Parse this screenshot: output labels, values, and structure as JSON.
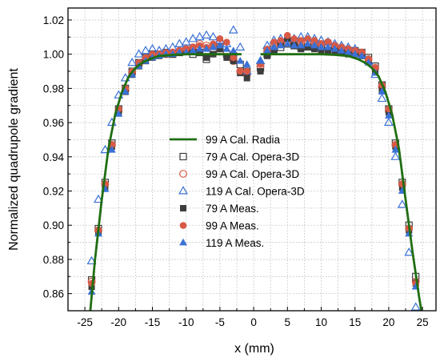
{
  "chart_data": {
    "type": "scatter",
    "xlabel": "x (mm)",
    "ylabel": "Normalized quadrupole gradient",
    "xlim": [
      -27.5,
      27
    ],
    "ylim": [
      0.85,
      1.027
    ],
    "xticks": [
      -25,
      -20,
      -15,
      -10,
      -5,
      0,
      5,
      10,
      15,
      20,
      25
    ],
    "yticks": [
      0.86,
      0.88,
      0.9,
      0.92,
      0.94,
      0.96,
      0.98,
      1.0,
      1.02
    ],
    "ytick_labels": [
      "0.86",
      "0.88",
      "0.90",
      "0.92",
      "0.94",
      "0.96",
      "0.98",
      "1.00",
      "1.02"
    ],
    "grid": true,
    "legend_position": "center",
    "colors": {
      "line": "#1f6e11",
      "gray": "#3d3d3d",
      "red": "#d85a46",
      "blue": "#3a71d6"
    },
    "series": [
      {
        "name": "99 A Cal. Radia",
        "kind": "line",
        "color": "#1f6e11",
        "segments": [
          [
            [
              -24.2,
              0.85
            ],
            [
              -23.5,
              0.88
            ],
            [
              -22.5,
              0.915
            ],
            [
              -21.5,
              0.945
            ],
            [
              -20.5,
              0.965
            ],
            [
              -19.5,
              0.978
            ],
            [
              -18.5,
              0.987
            ],
            [
              -17.5,
              0.992
            ],
            [
              -16.5,
              0.995
            ],
            [
              -15.5,
              0.997
            ],
            [
              -14,
              0.999
            ],
            [
              -12,
              0.9996
            ],
            [
              -10,
              1.0
            ],
            [
              -5,
              1.0
            ],
            [
              -1.8,
              1.0
            ]
          ],
          [
            [
              1.0,
              1.0
            ],
            [
              5,
              1.0
            ],
            [
              10,
              1.0
            ],
            [
              12,
              0.9996
            ],
            [
              14,
              0.999
            ],
            [
              15.5,
              0.997
            ],
            [
              16.5,
              0.995
            ],
            [
              17.5,
              0.992
            ],
            [
              18.5,
              0.987
            ],
            [
              19.5,
              0.978
            ],
            [
              20.5,
              0.965
            ],
            [
              21.5,
              0.945
            ],
            [
              22.5,
              0.915
            ],
            [
              23.5,
              0.885
            ],
            [
              24.5,
              0.858
            ],
            [
              25,
              0.846
            ]
          ]
        ]
      },
      {
        "name": "79 A Cal. Opera-3D",
        "kind": "open-square",
        "color": "#3d3d3d",
        "x": [
          -24,
          -23,
          -22,
          -21,
          -20,
          -19,
          -18,
          -17,
          -16,
          -15,
          -14,
          -13,
          -12,
          -11,
          -10,
          -9,
          -8,
          -7,
          -6,
          -5,
          -4,
          -3,
          -2,
          -1,
          1,
          2,
          3,
          4,
          5,
          6,
          7,
          8,
          9,
          10,
          11,
          12,
          13,
          14,
          15,
          16,
          17,
          18,
          19,
          20,
          21,
          22,
          23,
          24
        ],
        "y": [
          0.868,
          0.898,
          0.925,
          0.948,
          0.968,
          0.98,
          0.99,
          0.995,
          0.998,
          1.0,
          1.0,
          1.001,
          1.0,
          1.001,
          1.002,
          1.0,
          1.001,
          0.997,
          1.002,
          1.004,
          1.0,
          0.999,
          0.994,
          0.99,
          0.992,
          1.0,
          1.003,
          1.004,
          1.006,
          1.005,
          1.004,
          1.006,
          1.004,
          1.005,
          1.004,
          1.004,
          1.002,
          1.001,
          1.002,
          1.001,
          0.998,
          0.993,
          0.982,
          0.968,
          0.948,
          0.925,
          0.9,
          0.87
        ]
      },
      {
        "name": "99 A Cal. Opera-3D",
        "kind": "open-circle",
        "color": "#d85a46",
        "x": [
          -24,
          -23,
          -22,
          -21,
          -20,
          -19,
          -18,
          -17,
          -16,
          -15,
          -14,
          -13,
          -12,
          -11,
          -10,
          -9,
          -8,
          -7,
          -6,
          -5,
          -4,
          -3,
          -2,
          -1,
          1,
          2,
          3,
          4,
          5,
          6,
          7,
          8,
          9,
          10,
          11,
          12,
          13,
          14,
          15,
          16,
          17,
          18,
          19,
          20,
          21,
          22,
          23,
          24
        ],
        "y": [
          0.867,
          0.897,
          0.924,
          0.947,
          0.967,
          0.979,
          0.989,
          0.994,
          0.997,
          0.999,
          1.0,
          1.0,
          1.001,
          1.002,
          1.003,
          1.004,
          1.006,
          1.005,
          1.003,
          1.007,
          1.001,
          0.996,
          0.99,
          0.988,
          0.993,
          1.002,
          1.005,
          1.006,
          1.008,
          1.008,
          1.007,
          1.008,
          1.007,
          1.006,
          1.007,
          1.005,
          1.004,
          1.003,
          1.002,
          1.001,
          0.997,
          0.992,
          0.981,
          0.967,
          0.947,
          0.924,
          0.898,
          0.867
        ]
      },
      {
        "name": "119 A Cal. Opera-3D",
        "kind": "open-triangle",
        "color": "#3a71d6",
        "x": [
          -24,
          -23,
          -22,
          -21,
          -20,
          -19,
          -18,
          -17,
          -16,
          -15,
          -14,
          -13,
          -12,
          -11,
          -10,
          -9,
          -8,
          -7,
          -6,
          -5,
          -4,
          -3,
          -2,
          -1,
          1,
          2,
          3,
          4,
          5,
          6,
          7,
          8,
          9,
          10,
          11,
          12,
          13,
          14,
          15,
          16,
          17,
          18,
          19,
          20,
          21,
          22,
          23,
          24
        ],
        "y": [
          0.879,
          0.915,
          0.944,
          0.96,
          0.976,
          0.986,
          0.995,
          1.0,
          1.002,
          1.003,
          1.002,
          1.003,
          1.004,
          1.006,
          1.007,
          1.009,
          1.01,
          1.011,
          1.01,
          1.008,
          1.006,
          1.014,
          1.004,
          0.99,
          0.996,
          1.005,
          1.008,
          1.009,
          1.01,
          1.009,
          1.01,
          1.01,
          1.009,
          1.008,
          1.007,
          1.006,
          1.005,
          1.004,
          1.003,
          1.0,
          0.996,
          0.988,
          0.974,
          0.96,
          0.94,
          0.912,
          0.884,
          0.852
        ]
      },
      {
        "name": "79 A Meas.",
        "kind": "filled-square",
        "color": "#3d3d3d",
        "x": [
          -24,
          -23,
          -22,
          -21,
          -20,
          -19,
          -18,
          -17,
          -16,
          -15,
          -14,
          -13,
          -12,
          -11,
          -10,
          -9,
          -8,
          -7,
          -6,
          -5,
          -4,
          -3,
          -2,
          -1,
          1,
          2,
          3,
          4,
          5,
          6,
          7,
          8,
          9,
          10,
          11,
          12,
          13,
          14,
          15,
          16,
          17,
          18,
          19,
          20,
          21,
          22,
          23,
          24
        ],
        "y": [
          0.864,
          0.896,
          0.922,
          0.946,
          0.966,
          0.978,
          0.988,
          0.993,
          0.996,
          0.998,
          0.999,
          1.0,
          1.0,
          1.001,
          1.002,
          1.003,
          1.001,
          0.998,
          1.0,
          1.003,
          0.998,
          0.996,
          0.989,
          0.986,
          0.99,
          0.999,
          1.002,
          1.006,
          1.009,
          1.005,
          1.003,
          1.004,
          1.003,
          1.002,
          1.002,
          1.002,
          1.001,
          1.0,
          1.0,
          0.999,
          0.996,
          0.99,
          0.979,
          0.966,
          0.946,
          0.922,
          0.897,
          0.866
        ]
      },
      {
        "name": "99 A Meas.",
        "kind": "filled-circle",
        "color": "#d85a46",
        "x": [
          -24,
          -23,
          -22,
          -21,
          -20,
          -19,
          -18,
          -17,
          -16,
          -15,
          -14,
          -13,
          -12,
          -11,
          -10,
          -9,
          -8,
          -7,
          -6,
          -5,
          -4,
          -3,
          -2,
          -1,
          1,
          2,
          3,
          4,
          5,
          6,
          7,
          8,
          9,
          10,
          11,
          12,
          13,
          14,
          15,
          16,
          17,
          18,
          19,
          20,
          21,
          22,
          23,
          24
        ],
        "y": [
          0.866,
          0.897,
          0.924,
          0.947,
          0.968,
          0.98,
          0.99,
          0.995,
          0.998,
          1.0,
          1.0,
          1.001,
          1.001,
          1.002,
          1.003,
          1.004,
          1.005,
          1.004,
          1.006,
          1.009,
          1.007,
          0.998,
          0.99,
          0.99,
          0.994,
          1.003,
          1.007,
          1.008,
          1.011,
          1.009,
          1.008,
          1.009,
          1.008,
          1.006,
          1.007,
          1.005,
          1.004,
          1.003,
          1.002,
          1.001,
          0.997,
          0.992,
          0.982,
          0.968,
          0.947,
          0.924,
          0.898,
          0.866
        ]
      },
      {
        "name": "119 A Meas.",
        "kind": "filled-triangle",
        "color": "#3a71d6",
        "x": [
          -24,
          -23,
          -22,
          -21,
          -20,
          -19,
          -18,
          -17,
          -16,
          -15,
          -14,
          -13,
          -12,
          -11,
          -10,
          -9,
          -8,
          -7,
          -6,
          -5,
          -4,
          -3,
          -2,
          -1,
          1,
          2,
          3,
          4,
          5,
          6,
          7,
          8,
          9,
          10,
          11,
          12,
          13,
          14,
          15,
          16,
          17,
          18,
          19,
          20,
          21,
          22,
          23,
          24
        ],
        "y": [
          0.861,
          0.895,
          0.921,
          0.944,
          0.965,
          0.978,
          0.988,
          0.993,
          0.996,
          0.998,
          0.999,
          1.0,
          1.0,
          1.001,
          1.001,
          1.002,
          1.003,
          1.003,
          1.004,
          1.005,
          1.003,
          1.002,
          0.996,
          0.994,
          0.996,
          1.002,
          1.004,
          1.005,
          1.006,
          1.005,
          1.005,
          1.006,
          1.005,
          1.004,
          1.004,
          1.003,
          1.002,
          1.001,
          1.0,
          0.999,
          0.995,
          0.989,
          0.978,
          0.964,
          0.944,
          0.92,
          0.895,
          0.864
        ]
      }
    ]
  }
}
